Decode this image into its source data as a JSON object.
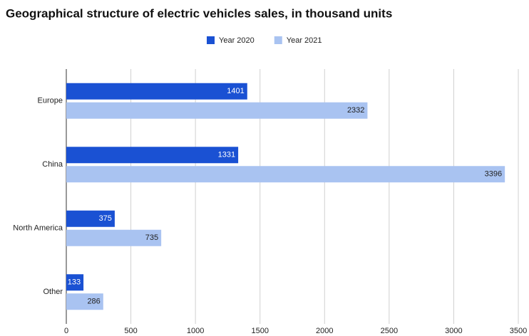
{
  "chart_data": {
    "type": "hbar",
    "title": "Geographical structure of electric vehicles sales, in thousand units",
    "categories": [
      "Europe",
      "China",
      "North America",
      "Other"
    ],
    "series": [
      {
        "name": "Year 2020",
        "color": "#1a51d3",
        "values": [
          1401,
          1331,
          375,
          133
        ]
      },
      {
        "name": "Year 2021",
        "color": "#a9c3f1",
        "values": [
          2332,
          3396,
          735,
          286
        ]
      }
    ],
    "xlim": [
      0,
      3500
    ],
    "xticks": [
      0,
      500,
      1000,
      1500,
      2000,
      2500,
      3000,
      3500
    ],
    "grid": true,
    "legend": "top"
  }
}
